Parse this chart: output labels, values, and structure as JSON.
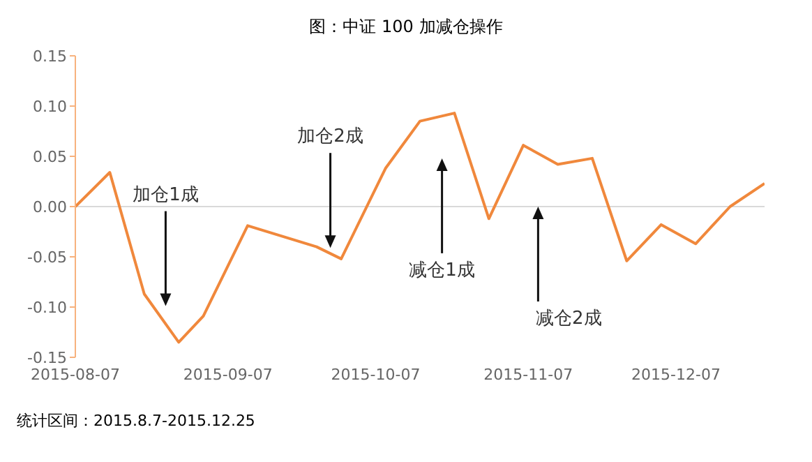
{
  "chart_data": {
    "type": "line",
    "title": "图：中证 100 加减仓操作",
    "x": [
      "2015-08-07",
      "2015-08-14",
      "2015-08-21",
      "2015-08-28",
      "2015-09-02",
      "2015-09-11",
      "2015-09-25",
      "2015-09-30",
      "2015-10-09",
      "2015-10-16",
      "2015-10-23",
      "2015-10-30",
      "2015-11-06",
      "2015-11-13",
      "2015-11-20",
      "2015-11-27",
      "2015-12-04",
      "2015-12-11",
      "2015-12-18",
      "2015-12-25"
    ],
    "series": [
      {
        "color": "#f0883c",
        "values": [
          0.0,
          0.034,
          -0.087,
          -0.135,
          -0.109,
          -0.019,
          -0.04,
          -0.052,
          0.038,
          0.085,
          0.093,
          -0.012,
          0.061,
          0.042,
          0.048,
          -0.054,
          -0.018,
          -0.037,
          0.0,
          0.023
        ]
      }
    ],
    "xlim": [
      "2015-08-07",
      "2015-12-25"
    ],
    "xticks": [
      "2015-08-07",
      "2015-09-07",
      "2015-10-07",
      "2015-11-07",
      "2015-12-07"
    ],
    "ylim": [
      -0.15,
      0.15
    ],
    "yticks": [
      -0.15,
      {
        "value": -0.1,
        "label": "-0.10"
      },
      -0.05,
      {
        "value": 0,
        "label": "0.00"
      },
      0.05,
      {
        "value": 0.1,
        "label": "0.10"
      },
      0.15
    ],
    "ref_lines": [
      {
        "axis": "y",
        "value": 0,
        "color": "#d9d9d9"
      }
    ],
    "legend": false,
    "marker": "none",
    "line_style": "solid",
    "annotations": [
      "加仓1成",
      "加仓2成",
      "减仓1成",
      {
        "text": "减仓2成",
        "x": "2015-11-09",
        "y": 0
      },
      "统计区间：2015.8.7-2015.12.25"
    ]
  }
}
